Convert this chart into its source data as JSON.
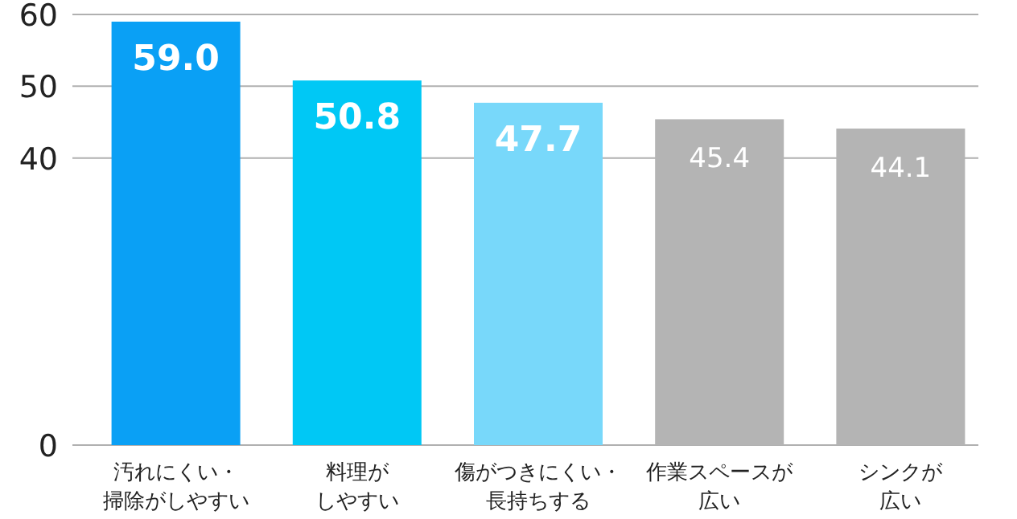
{
  "chart_data": {
    "type": "bar",
    "categories": [
      "汚れにくい・掃除がしやすい",
      "料理がしやすい",
      "傷がつきにくい・長持ちする",
      "作業スペースが広い",
      "シンクが広い"
    ],
    "values": [
      59.0,
      50.8,
      47.7,
      45.4,
      44.1
    ],
    "colors": [
      "#0aa0f5",
      "#00c8f5",
      "#78d8fa",
      "#b4b4b4",
      "#b4b4b4"
    ],
    "value_labels": [
      "59.0",
      "50.8",
      "47.7",
      "45.4",
      "44.1"
    ],
    "ylim": [
      0,
      60
    ],
    "yticks": [
      0,
      40,
      50,
      60
    ],
    "grid": "y"
  }
}
